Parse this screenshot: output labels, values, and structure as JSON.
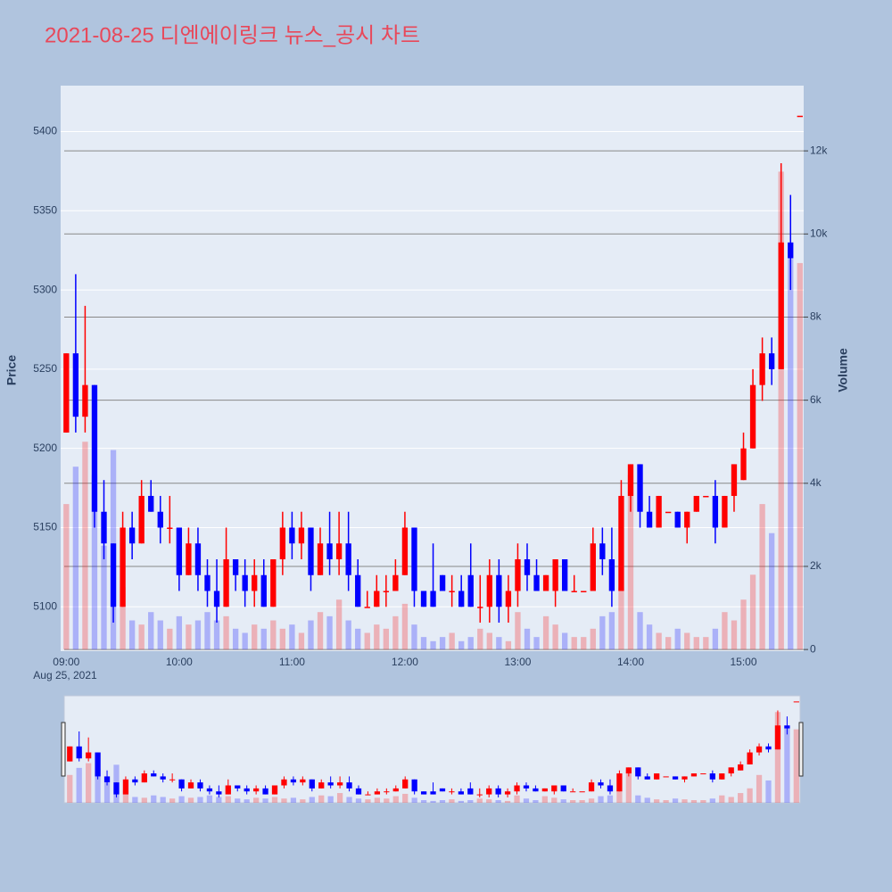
{
  "chart_data": {
    "type": "candlestick",
    "title": "2021-08-25 디엔에이링크 뉴스_공시 차트",
    "ylabel": "Price",
    "y2label": "Volume",
    "increasing_color": "#ff0000",
    "decreasing_color": "#0000ff",
    "x": [
      "2021-08-25 09:00",
      "2021-08-25 09:05",
      "2021-08-25 09:10",
      "2021-08-25 09:15",
      "2021-08-25 09:20",
      "2021-08-25 09:25",
      "2021-08-25 09:30",
      "2021-08-25 09:35",
      "2021-08-25 09:40",
      "2021-08-25 09:45",
      "2021-08-25 09:50",
      "2021-08-25 09:55",
      "2021-08-25 10:00",
      "2021-08-25 10:05",
      "2021-08-25 10:10",
      "2021-08-25 10:15",
      "2021-08-25 10:20",
      "2021-08-25 10:25",
      "2021-08-25 10:30",
      "2021-08-25 10:35",
      "2021-08-25 10:40",
      "2021-08-25 10:45",
      "2021-08-25 10:50",
      "2021-08-25 10:55",
      "2021-08-25 11:00",
      "2021-08-25 11:05",
      "2021-08-25 11:10",
      "2021-08-25 11:15",
      "2021-08-25 11:20",
      "2021-08-25 11:25",
      "2021-08-25 11:30",
      "2021-08-25 11:35",
      "2021-08-25 11:40",
      "2021-08-25 11:45",
      "2021-08-25 11:50",
      "2021-08-25 11:55",
      "2021-08-25 12:00",
      "2021-08-25 12:05",
      "2021-08-25 12:10",
      "2021-08-25 12:15",
      "2021-08-25 12:20",
      "2021-08-25 12:25",
      "2021-08-25 12:30",
      "2021-08-25 12:35",
      "2021-08-25 12:40",
      "2021-08-25 12:45",
      "2021-08-25 12:50",
      "2021-08-25 12:55",
      "2021-08-25 13:00",
      "2021-08-25 13:05",
      "2021-08-25 13:10",
      "2021-08-25 13:15",
      "2021-08-25 13:20",
      "2021-08-25 13:25",
      "2021-08-25 13:30",
      "2021-08-25 13:35",
      "2021-08-25 13:40",
      "2021-08-25 13:45",
      "2021-08-25 13:50",
      "2021-08-25 13:55",
      "2021-08-25 14:00",
      "2021-08-25 14:05",
      "2021-08-25 14:10",
      "2021-08-25 14:15",
      "2021-08-25 14:20",
      "2021-08-25 14:25",
      "2021-08-25 14:30",
      "2021-08-25 14:35",
      "2021-08-25 14:40",
      "2021-08-25 14:45",
      "2021-08-25 14:50",
      "2021-08-25 14:55",
      "2021-08-25 15:00",
      "2021-08-25 15:05",
      "2021-08-25 15:10",
      "2021-08-25 15:15",
      "2021-08-25 15:20",
      "2021-08-25 15:25",
      "2021-08-25 15:30"
    ],
    "open": [
      5210,
      5260,
      5220,
      5240,
      5160,
      5140,
      5100,
      5150,
      5140,
      5170,
      5160,
      5150,
      5150,
      5120,
      5140,
      5120,
      5110,
      5100,
      5130,
      5120,
      5110,
      5120,
      5100,
      5130,
      5150,
      5140,
      5150,
      5120,
      5140,
      5130,
      5140,
      5120,
      5100,
      5100,
      5110,
      5110,
      5120,
      5150,
      5110,
      5110,
      5120,
      5110,
      5110,
      5120,
      5100,
      5100,
      5120,
      5100,
      5110,
      5130,
      5120,
      5110,
      5110,
      5130,
      5110,
      5110,
      5110,
      5140,
      5130,
      5110,
      5170,
      5190,
      5160,
      5150,
      5160,
      5160,
      5150,
      5160,
      5170,
      5170,
      5150,
      5170,
      5180,
      5200,
      5240,
      5260,
      5250,
      5330,
      5410
    ],
    "high": [
      5260,
      5310,
      5290,
      5240,
      5180,
      5140,
      5160,
      5160,
      5180,
      5180,
      5170,
      5170,
      5150,
      5150,
      5150,
      5130,
      5130,
      5150,
      5130,
      5130,
      5130,
      5130,
      5130,
      5160,
      5160,
      5160,
      5150,
      5150,
      5160,
      5160,
      5160,
      5130,
      5110,
      5120,
      5120,
      5130,
      5160,
      5150,
      5110,
      5140,
      5120,
      5120,
      5120,
      5140,
      5120,
      5130,
      5130,
      5120,
      5140,
      5140,
      5130,
      5120,
      5130,
      5130,
      5120,
      5110,
      5150,
      5150,
      5150,
      5180,
      5190,
      5190,
      5170,
      5170,
      5160,
      5160,
      5160,
      5170,
      5170,
      5180,
      5170,
      5190,
      5210,
      5250,
      5270,
      5270,
      5380,
      5360,
      5410
    ],
    "low": [
      5210,
      5210,
      5210,
      5150,
      5130,
      5090,
      5100,
      5130,
      5140,
      5160,
      5140,
      5140,
      5110,
      5120,
      5110,
      5100,
      5090,
      5100,
      5110,
      5100,
      5100,
      5100,
      5100,
      5120,
      5130,
      5130,
      5110,
      5120,
      5120,
      5120,
      5110,
      5100,
      5100,
      5100,
      5100,
      5110,
      5120,
      5100,
      5100,
      5100,
      5110,
      5100,
      5100,
      5100,
      5090,
      5090,
      5090,
      5090,
      5100,
      5110,
      5110,
      5110,
      5100,
      5110,
      5110,
      5110,
      5110,
      5120,
      5100,
      5110,
      5160,
      5150,
      5150,
      5150,
      5160,
      5150,
      5140,
      5160,
      5170,
      5140,
      5150,
      5160,
      5180,
      5200,
      5230,
      5240,
      5250,
      5300,
      5410
    ],
    "close": [
      5260,
      5220,
      5240,
      5160,
      5140,
      5100,
      5150,
      5140,
      5170,
      5160,
      5150,
      5150,
      5120,
      5140,
      5120,
      5110,
      5100,
      5130,
      5120,
      5110,
      5120,
      5100,
      5130,
      5150,
      5140,
      5150,
      5120,
      5140,
      5130,
      5140,
      5120,
      5100,
      5100,
      5110,
      5110,
      5120,
      5150,
      5110,
      5100,
      5100,
      5110,
      5110,
      5100,
      5100,
      5100,
      5120,
      5100,
      5110,
      5130,
      5120,
      5110,
      5120,
      5130,
      5110,
      5110,
      5110,
      5140,
      5130,
      5110,
      5170,
      5190,
      5160,
      5150,
      5170,
      5160,
      5150,
      5160,
      5170,
      5170,
      5150,
      5170,
      5190,
      5200,
      5240,
      5260,
      5250,
      5330,
      5320,
      5410
    ],
    "volume": [
      3500,
      4400,
      5000,
      4200,
      2500,
      4800,
      1500,
      700,
      600,
      900,
      700,
      500,
      800,
      600,
      700,
      900,
      700,
      800,
      500,
      400,
      600,
      500,
      700,
      500,
      600,
      400,
      700,
      900,
      800,
      1200,
      700,
      500,
      400,
      600,
      500,
      800,
      1100,
      600,
      300,
      200,
      300,
      400,
      200,
      300,
      500,
      400,
      300,
      200,
      900,
      500,
      300,
      800,
      600,
      400,
      300,
      300,
      500,
      800,
      900,
      1500,
      4200,
      900,
      600,
      400,
      300,
      500,
      400,
      300,
      300,
      500,
      900,
      700,
      1200,
      1800,
      3500,
      2800,
      11500,
      9400,
      9300
    ],
    "xlim": [
      "2021-08-25 08:57",
      "2021-08-25 15:32"
    ],
    "xticks": [
      {
        "value": "2021-08-25 09:00",
        "label": "09:00"
      },
      {
        "value": "2021-08-25 10:00",
        "label": "10:00"
      },
      {
        "value": "2021-08-25 11:00",
        "label": "11:00"
      },
      {
        "value": "2021-08-25 12:00",
        "label": "12:00"
      },
      {
        "value": "2021-08-25 13:00",
        "label": "13:00"
      },
      {
        "value": "2021-08-25 14:00",
        "label": "14:00"
      },
      {
        "value": "2021-08-25 15:00",
        "label": "15:00"
      }
    ],
    "x_date_label": "Aug 25, 2021",
    "ylim": [
      5072,
      5429
    ],
    "yticks": [
      5100,
      5150,
      5200,
      5250,
      5300,
      5350,
      5400
    ],
    "y2lim": [
      -40,
      13570
    ],
    "y2ticks": [
      0,
      {
        "value": 2000,
        "label": "2k"
      },
      {
        "value": 4000,
        "label": "4k"
      },
      {
        "value": 6000,
        "label": "6k"
      },
      {
        "value": 8000,
        "label": "8k"
      },
      {
        "value": 10000,
        "label": "10k"
      },
      {
        "value": 12000,
        "label": "12k"
      }
    ],
    "grid": true,
    "rangeslider": true
  }
}
